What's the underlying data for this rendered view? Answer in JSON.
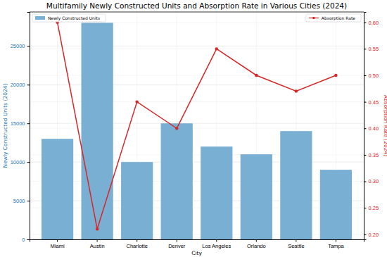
{
  "chart_data": {
    "type": "bar",
    "title": "Multifamily Newly Constructed Units and Absorption Rate in Various Cities (2024)",
    "x_label": "City",
    "y_label": "Newly Constructed Units (2024)",
    "y2_label": "Absorption Rate (2024)",
    "categories": [
      "Miami",
      "Austin",
      "Charlotte",
      "Denver",
      "Los Angeles",
      "Orlando",
      "Seattle",
      "Tampa"
    ],
    "series": [
      {
        "name": "Newly Constructed Units",
        "type": "bar",
        "color": "#7aafd4",
        "values": [
          13000,
          28000,
          10000,
          15000,
          12000,
          11000,
          14000,
          9000
        ]
      },
      {
        "name": "Absorption Rate",
        "type": "line",
        "color": "#d62728",
        "marker": "circle",
        "axis": "y2",
        "values": [
          0.6,
          0.21,
          0.45,
          0.4,
          0.55,
          0.5,
          0.47,
          0.5
        ]
      }
    ],
    "ylim": [
      0,
      29400
    ],
    "yticks": [
      0,
      5000,
      10000,
      15000,
      20000,
      25000
    ],
    "y2lim": [
      0.1905,
      0.6195
    ],
    "y2ticks": [
      {
        "value": 0.2,
        "label": "0.20"
      },
      {
        "value": 0.25,
        "label": "0.25"
      },
      {
        "value": 0.3,
        "label": "0.30"
      },
      {
        "value": 0.35,
        "label": "0.35"
      },
      {
        "value": 0.4,
        "label": "0.40"
      },
      {
        "value": 0.45,
        "label": "0.45"
      },
      {
        "value": 0.5,
        "label": "0.50"
      },
      {
        "value": 0.55,
        "label": "0.55"
      },
      {
        "value": 0.6,
        "label": "0.60"
      }
    ],
    "grid": true,
    "legend": "top"
  }
}
